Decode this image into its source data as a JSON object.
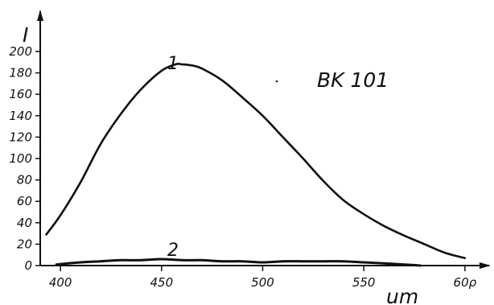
{
  "chart_data": {
    "type": "line",
    "title": "BK 101",
    "xlabel": "um",
    "ylabel": "I",
    "xlim": [
      390,
      612
    ],
    "ylim": [
      0,
      212
    ],
    "x_ticks": [
      400,
      450,
      500,
      550,
      600
    ],
    "x_tick_labels": [
      "400",
      "450",
      "500",
      "550",
      "60ρ"
    ],
    "y_ticks": [
      0,
      20,
      40,
      60,
      80,
      100,
      120,
      140,
      160,
      180,
      200
    ],
    "y_tick_labels": [
      "0",
      "20",
      "40",
      "60",
      "80",
      "100",
      "120",
      "140",
      "160",
      "180",
      "200"
    ],
    "grid": false,
    "series": [
      {
        "name": "1",
        "x": [
          393,
          400,
          410,
          420,
          430,
          440,
          450,
          457,
          460,
          465,
          470,
          480,
          490,
          500,
          510,
          520,
          530,
          540,
          550,
          560,
          570,
          580,
          590,
          600
        ],
        "y": [
          29,
          47,
          78,
          114,
          142,
          165,
          182,
          188,
          188,
          187,
          184,
          173,
          157,
          140,
          120,
          100,
          79,
          61,
          48,
          37,
          28,
          20,
          12,
          7
        ]
      },
      {
        "name": "2",
        "x": [
          398,
          410,
          420,
          430,
          440,
          450,
          460,
          470,
          480,
          490,
          500,
          510,
          520,
          530,
          540,
          550,
          560,
          570,
          578
        ],
        "y": [
          1,
          3,
          4,
          5,
          5,
          6,
          5,
          5,
          4,
          4,
          3,
          4,
          4,
          4,
          4,
          3,
          2,
          1,
          0
        ]
      }
    ]
  }
}
